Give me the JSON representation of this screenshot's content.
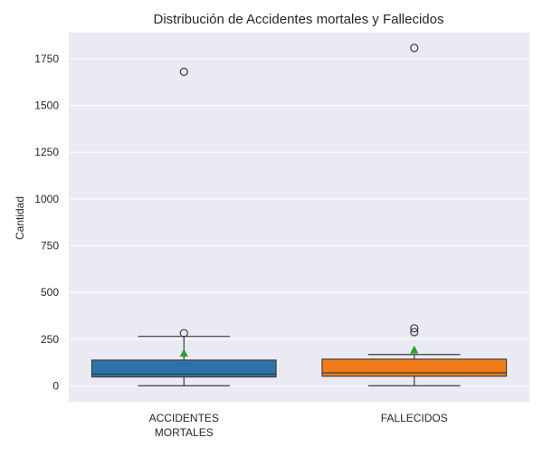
{
  "chart_data": {
    "type": "box",
    "title": "Distribución de Accidentes mortales y Fallecidos",
    "xlabel": "",
    "ylabel": "Cantidad",
    "ylim": [
      -85,
      1890
    ],
    "yticks": [
      0,
      250,
      500,
      750,
      1000,
      1250,
      1500,
      1750
    ],
    "grid": true,
    "categories": [
      {
        "line1": "ACCIDENTES",
        "line2": "MORTALES"
      },
      {
        "line1": "FALLECIDOS",
        "line2": ""
      }
    ],
    "series": [
      {
        "category": "ACCIDENTES MORTALES",
        "color": "#2c74a8",
        "whisker_low": 1,
        "q1": 48,
        "median": 63,
        "q3": 138,
        "whisker_high": 265,
        "mean": 176,
        "outliers": [
          282,
          1680
        ]
      },
      {
        "category": "FALLECIDOS",
        "color": "#f07d1a",
        "whisker_low": 1,
        "q1": 52,
        "median": 70,
        "q3": 143,
        "whisker_high": 168,
        "mean": 193,
        "outliers": [
          288,
          308,
          1808
        ]
      }
    ],
    "colors": {
      "plot_bg": "#eaeaf2",
      "grid": "#ffffff",
      "mean_marker": "#2ca02c",
      "line": "#3d3d3d"
    }
  }
}
